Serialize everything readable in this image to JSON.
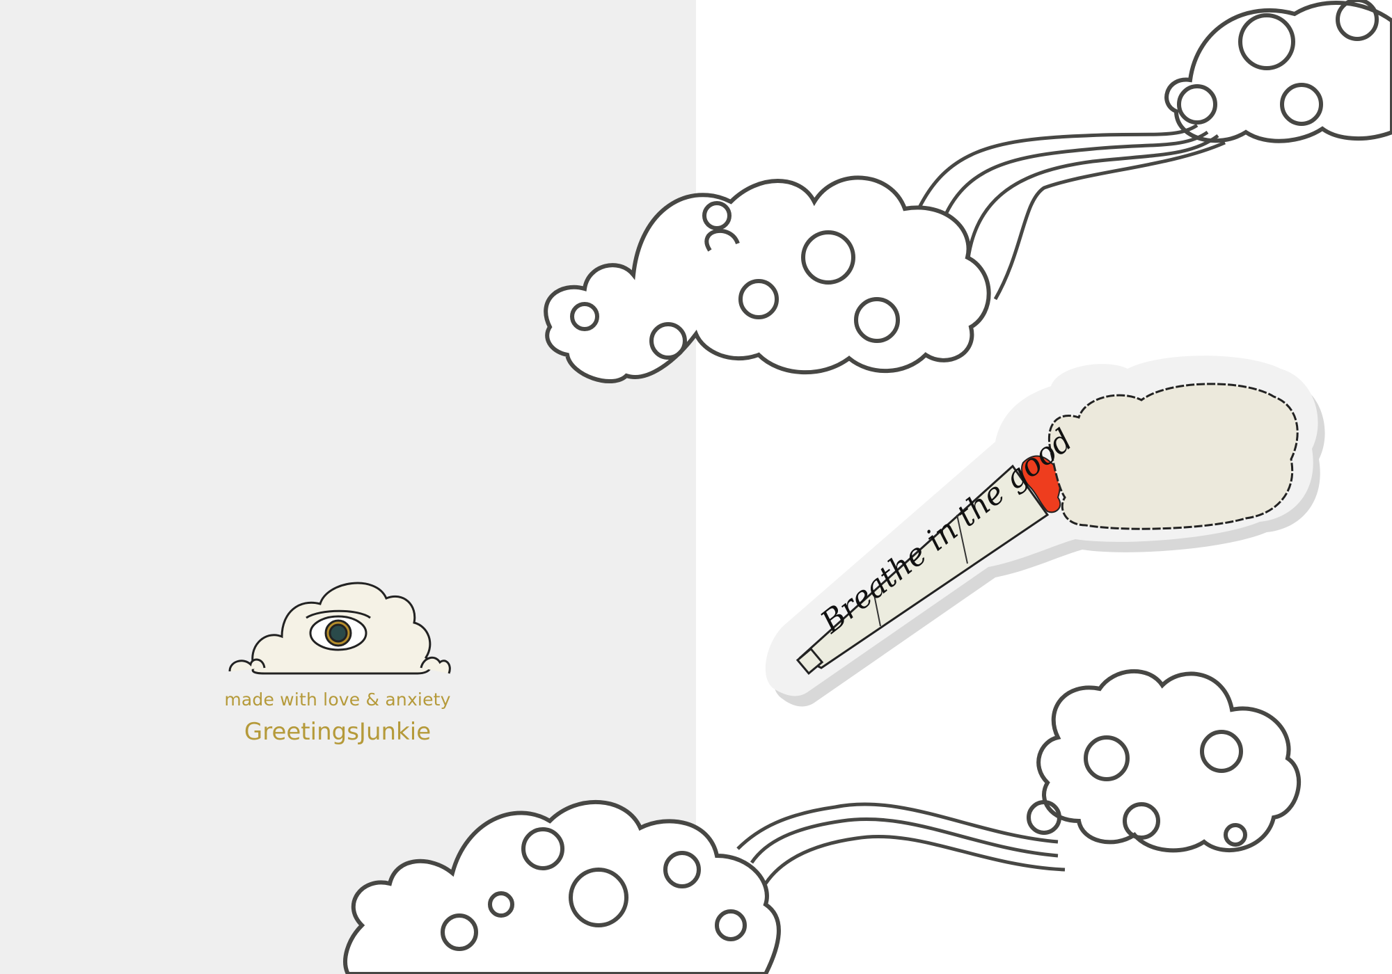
{
  "brand": {
    "tagline": "made with love & anxiety",
    "name": "GreetingsJunkie",
    "logo_icon": "cloud-eye-icon",
    "text_color": "#b59a3a"
  },
  "illustration": {
    "caption": "Breathe in the good",
    "sticker_icon": "joint-smoke-sticker-icon",
    "cloud_icon": "swirl-cloud-icon",
    "line_color": "#474744",
    "ember_color": "#ee3d1e"
  },
  "colors": {
    "left_background": "#efefef",
    "right_background": "#ffffff"
  }
}
